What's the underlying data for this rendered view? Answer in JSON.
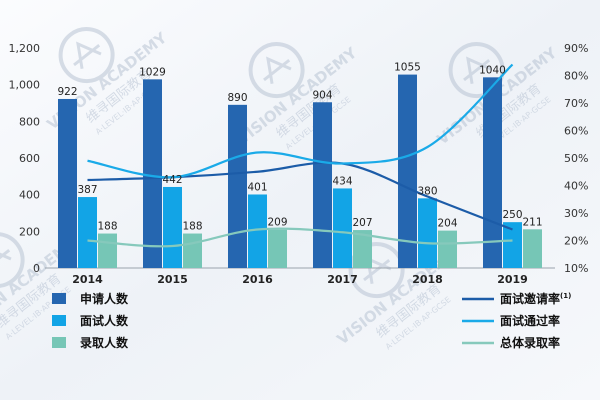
{
  "chart_data": {
    "type": "bar",
    "categories": [
      "2014",
      "2015",
      "2016",
      "2017",
      "2018",
      "2019"
    ],
    "y_left_lim": [
      0,
      1200
    ],
    "y_left_ticks": [
      "0",
      "200",
      "400",
      "600",
      "800",
      "1,000",
      "1,200"
    ],
    "y_right_lim": [
      10,
      90
    ],
    "y_right_ticks": [
      "10%",
      "20%",
      "30%",
      "40%",
      "50%",
      "60%",
      "70%",
      "80%",
      "90%"
    ],
    "bar_series": [
      {
        "name": "申请人数",
        "color": "#2566b0",
        "values": [
          922,
          1029,
          890,
          904,
          1055,
          1040
        ],
        "labels": [
          "922",
          "1029",
          "890",
          "904",
          "1055",
          "1040"
        ]
      },
      {
        "name": "面试人数",
        "color": "#12a4e6",
        "values": [
          387,
          442,
          401,
          434,
          380,
          250
        ],
        "labels": [
          "387",
          "442",
          "401",
          "434",
          "380",
          "250"
        ]
      },
      {
        "name": "录取人数",
        "color": "#76c6b6",
        "values": [
          188,
          188,
          209,
          207,
          204,
          211
        ],
        "labels": [
          "188",
          "188",
          "209",
          "207",
          "204",
          "211"
        ]
      }
    ],
    "line_series": [
      {
        "name": "面试邀请率",
        "name_sup": "(1)",
        "color": "#1c5ca8",
        "values": [
          42,
          43,
          45,
          48,
          36,
          24
        ]
      },
      {
        "name": "面试通过率",
        "color": "#1aaae8",
        "values": [
          49,
          43,
          52,
          48,
          54,
          84
        ]
      },
      {
        "name": "总体录取率",
        "color": "#86c9bc",
        "values": [
          20,
          18,
          24,
          23,
          19,
          20
        ]
      }
    ],
    "grid": false,
    "legend_position": "bottom"
  },
  "watermark": {
    "name_en": "VISION ACADEMY",
    "name_cn": "维寻国际教育",
    "subtitle": "A·LEVEL·IB·AP·GCSE"
  }
}
